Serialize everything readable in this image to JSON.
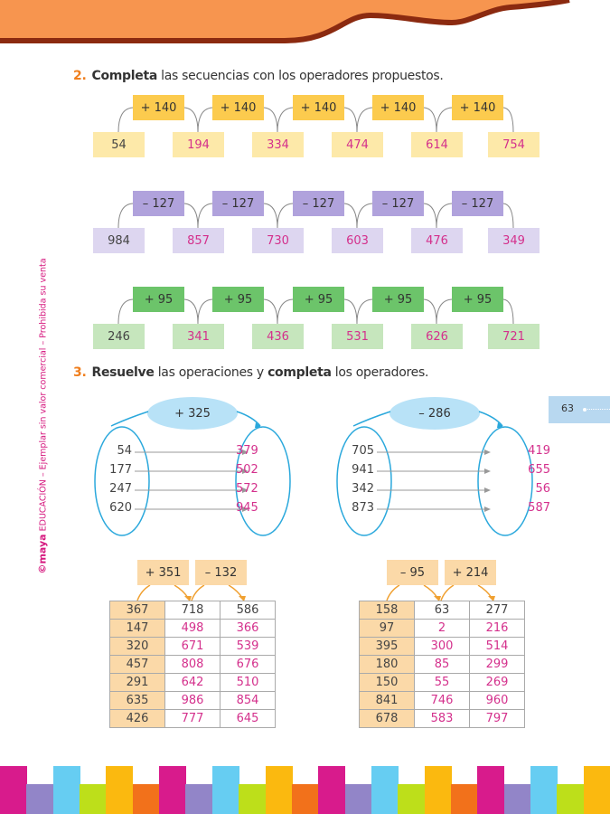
{
  "page_number": "63",
  "side_note": {
    "logo": "©maya",
    "text": "EDUCACIÓN – Ejemplar sin valor comercial – Prohibida su venta"
  },
  "exercise2": {
    "number": "2.",
    "bold": "Completa",
    "rest": "las secuencias con los operadores propuestos.",
    "sequences": [
      {
        "operator": "+ 140",
        "values": [
          "54",
          "194",
          "334",
          "474",
          "614",
          "754"
        ],
        "op_color": "#fccb4e",
        "val_color": "#fde9a9"
      },
      {
        "operator": "– 127",
        "values": [
          "984",
          "857",
          "730",
          "603",
          "476",
          "349"
        ],
        "op_color": "#b0a2dc",
        "val_color": "#ddd6f0"
      },
      {
        "operator": "+ 95",
        "values": [
          "246",
          "341",
          "436",
          "531",
          "626",
          "721"
        ],
        "op_color": "#6cc46a",
        "val_color": "#c6e6bd"
      }
    ]
  },
  "exercise3": {
    "number": "3.",
    "bold1": "Resuelve",
    "mid": "las operaciones y",
    "bold2": "completa",
    "rest": "los operadores.",
    "maps": [
      {
        "operator": "+ 325",
        "inputs": [
          "54",
          "177",
          "247",
          "620"
        ],
        "outputs": [
          "379",
          "502",
          "572",
          "945"
        ]
      },
      {
        "operator": "– 286",
        "inputs": [
          "705",
          "941",
          "342",
          "873"
        ],
        "outputs": [
          "419",
          "655",
          "56",
          "587"
        ]
      }
    ],
    "tables": [
      {
        "operators": [
          "+ 351",
          "– 132"
        ],
        "rows": [
          [
            "367",
            "718",
            "586"
          ],
          [
            "147",
            "498",
            "366"
          ],
          [
            "320",
            "671",
            "539"
          ],
          [
            "457",
            "808",
            "676"
          ],
          [
            "291",
            "642",
            "510"
          ],
          [
            "635",
            "986",
            "854"
          ],
          [
            "426",
            "777",
            "645"
          ]
        ]
      },
      {
        "operators": [
          "– 95",
          "+ 214"
        ],
        "rows": [
          [
            "158",
            "63",
            "277"
          ],
          [
            "97",
            "2",
            "216"
          ],
          [
            "395",
            "300",
            "514"
          ],
          [
            "180",
            "85",
            "299"
          ],
          [
            "150",
            "55",
            "269"
          ],
          [
            "841",
            "746",
            "960"
          ],
          [
            "678",
            "583",
            "797"
          ]
        ]
      }
    ]
  },
  "colors": {
    "accent_orange": "#f7954f",
    "header_border": "#8b2a10",
    "answer": "#d4308c",
    "blue": "#2aa8dc",
    "tab": "#b8d8f0"
  }
}
